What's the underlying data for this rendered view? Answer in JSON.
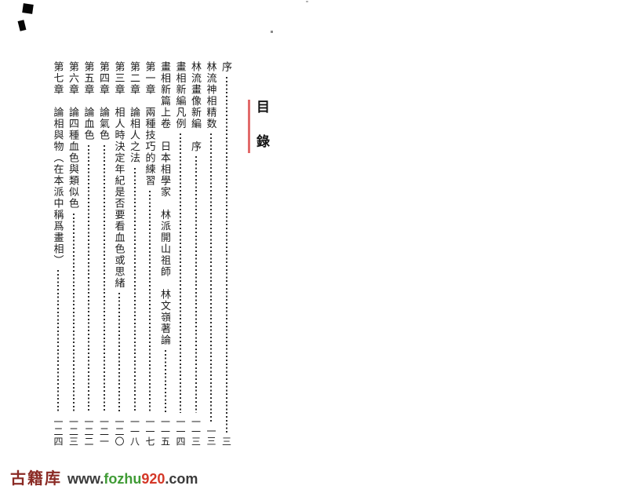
{
  "header": {
    "title": "目　錄",
    "accent_color": "#e26a6a"
  },
  "toc": {
    "ink_color": "#1c1c1c",
    "dot_color": "#2e2e2e",
    "entries": [
      {
        "title": "序",
        "page": "三"
      },
      {
        "title": "林流神相精数",
        "page": "一三"
      },
      {
        "title": "林流畫像新編　序",
        "page": "一一三"
      },
      {
        "title": "畫相新編凡例",
        "page": "一一四"
      },
      {
        "title": "畫相新篇上卷　日本相學家　林派開山祖師　林文嶺著論",
        "page": "一一五"
      },
      {
        "title": "第一章　兩種技巧的練習",
        "page": "一一七"
      },
      {
        "title": "第二章　論相人之法",
        "page": "一一八"
      },
      {
        "title": "第三章　相人時決定年紀是否要看血色或思緒",
        "page": "一二〇"
      },
      {
        "title": "第四章　論氣色",
        "page": "一二一"
      },
      {
        "title": "第五章　論血色",
        "page": "一二二"
      },
      {
        "title": "第六章　論四種血色與類似色",
        "page": "一二三"
      },
      {
        "title": "第七章　論相與物（在本派中稱爲畫相）",
        "page": "一二四"
      }
    ]
  },
  "watermark": {
    "site_name": "古籍库",
    "site_name_color": "#8a2a24",
    "url_www": "www.",
    "url_fozhu": "fozhu",
    "url_920": "920",
    "url_com": ".com",
    "url_base_color": "#3a3a3a",
    "url_green_color": "#3f9b35",
    "url_red_color": "#d43828"
  }
}
